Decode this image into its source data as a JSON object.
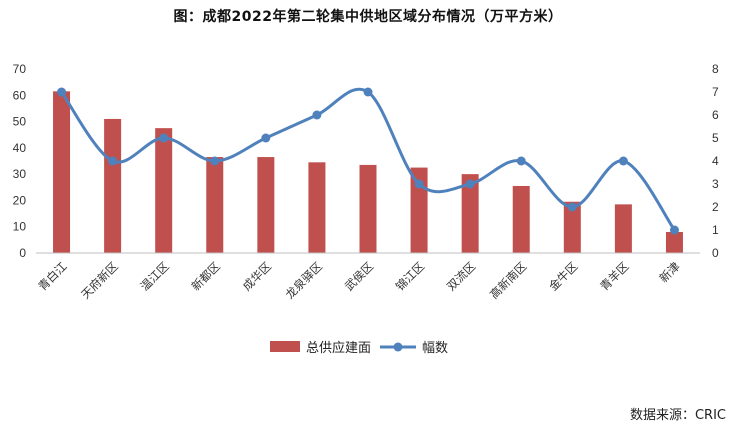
{
  "chart_data": {
    "type": "bar+line",
    "title": "图：成都2022年第二轮集中供地区域分布情况（万平方米）",
    "categories": [
      "青白江",
      "天府新区",
      "温江区",
      "新都区",
      "成华区",
      "龙泉驿区",
      "武侯区",
      "锦江区",
      "双流区",
      "高新南区",
      "金牛区",
      "青羊区",
      "新津"
    ],
    "series": [
      {
        "name": "总供应建面",
        "type": "bar",
        "axis": "left",
        "color": "#C0504D",
        "values": [
          61.5,
          51,
          47.5,
          36.5,
          36.5,
          34.5,
          33.5,
          32.5,
          30,
          25.5,
          19.5,
          18.5,
          8
        ]
      },
      {
        "name": "幅数",
        "type": "line",
        "axis": "right",
        "color": "#4F81BD",
        "values": [
          7,
          4,
          5,
          4,
          5,
          6,
          7,
          3,
          3,
          4,
          2,
          4,
          1
        ]
      }
    ],
    "y_left": {
      "min": 0,
      "max": 70,
      "ticks": [
        0,
        10,
        20,
        30,
        40,
        50,
        60,
        70
      ]
    },
    "y_right": {
      "min": 0,
      "max": 8,
      "ticks": [
        0,
        1,
        2,
        3,
        4,
        5,
        6,
        7,
        8
      ]
    },
    "grid": false,
    "legend": {
      "position": "bottom"
    }
  },
  "source_note": "数据来源：CRIC"
}
